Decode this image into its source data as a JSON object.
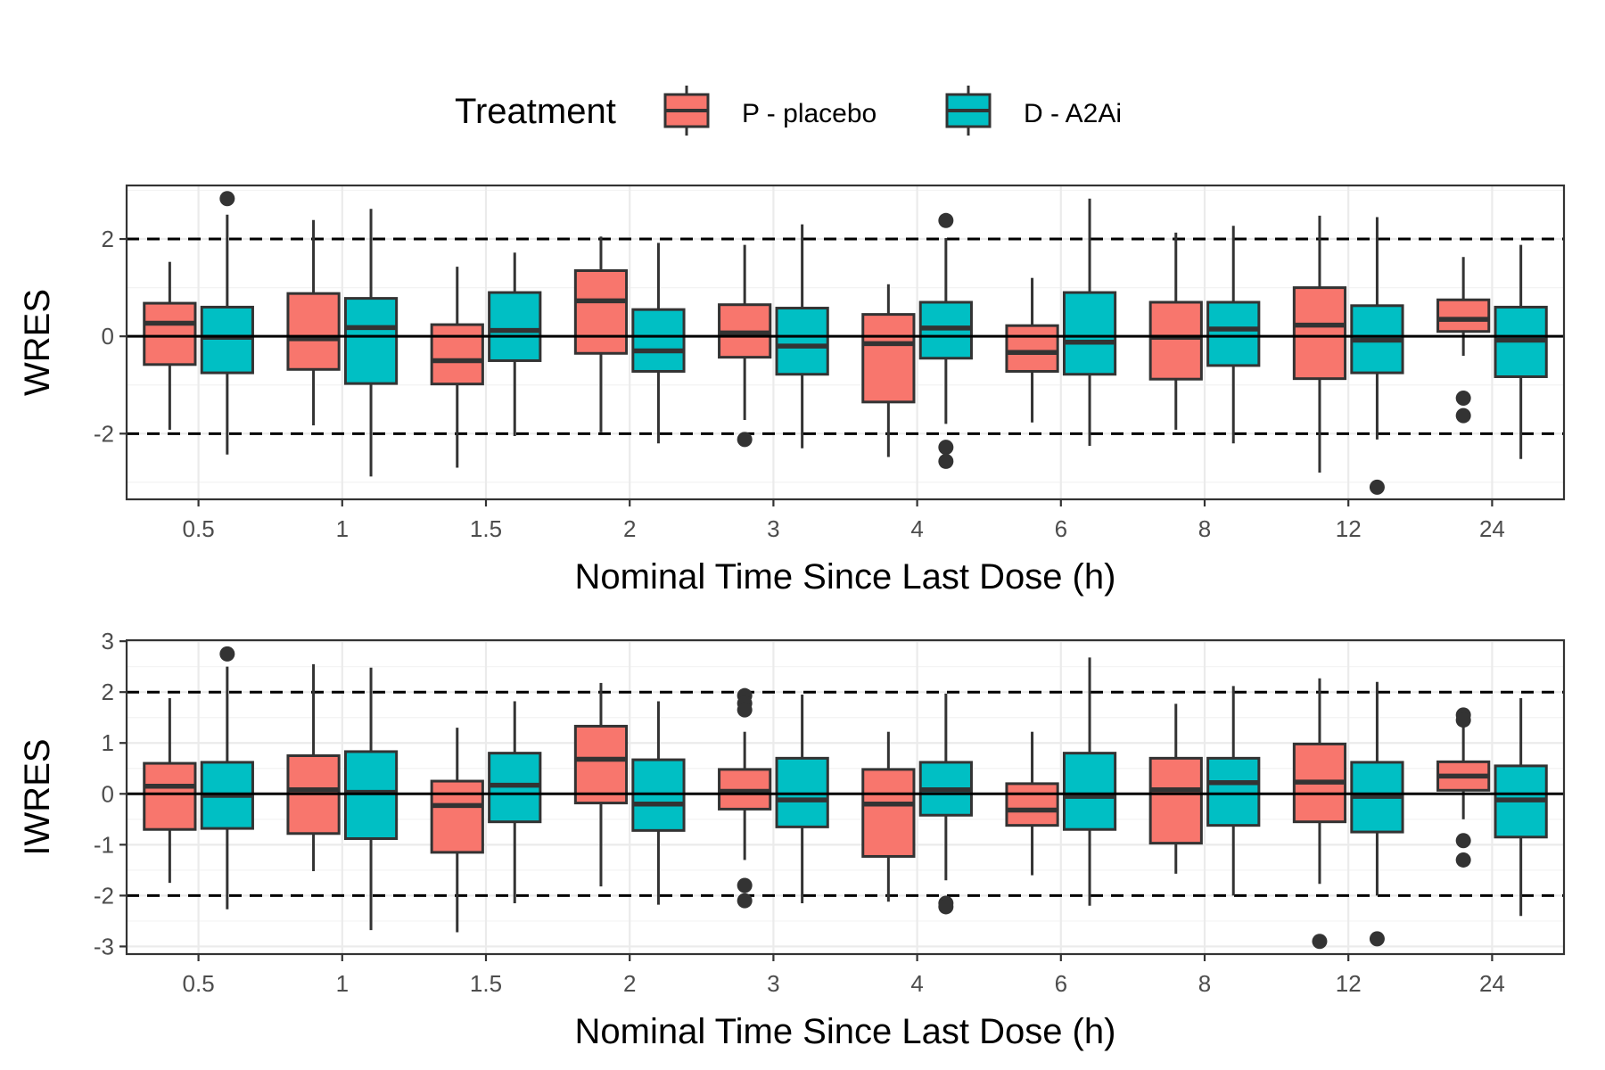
{
  "legend": {
    "title": "Treatment",
    "items": [
      {
        "label": "P - placebo",
        "color": "#F8766D"
      },
      {
        "label": "D - A2Ai",
        "color": "#00BFC4"
      }
    ]
  },
  "chart_data": [
    {
      "type": "box",
      "title": "",
      "xlabel": "Nominal Time Since Last Dose (h)",
      "ylabel": "WRES",
      "categories": [
        "0.5",
        "1",
        "1.5",
        "2",
        "3",
        "4",
        "6",
        "8",
        "12",
        "24"
      ],
      "ylim": [
        -3.35,
        3.1
      ],
      "yticks": [
        -2,
        0,
        2
      ],
      "ytick_labels": [
        "-2",
        "0",
        "2"
      ],
      "reference_lines": {
        "solid": [
          0
        ],
        "dashed": [
          -2,
          2
        ]
      },
      "grid": true,
      "series": [
        {
          "name": "P - placebo",
          "color": "#F8766D",
          "boxes": [
            {
              "whisker_low": -1.92,
              "q1": -0.58,
              "median": 0.27,
              "q3": 0.68,
              "whisker_high": 1.53,
              "outliers": []
            },
            {
              "whisker_low": -1.83,
              "q1": -0.68,
              "median": -0.05,
              "q3": 0.88,
              "whisker_high": 2.39,
              "outliers": []
            },
            {
              "whisker_low": -2.7,
              "q1": -0.98,
              "median": -0.5,
              "q3": 0.24,
              "whisker_high": 1.43,
              "outliers": []
            },
            {
              "whisker_low": -1.97,
              "q1": -0.35,
              "median": 0.73,
              "q3": 1.35,
              "whisker_high": 2.05,
              "outliers": []
            },
            {
              "whisker_low": -1.72,
              "q1": -0.43,
              "median": 0.07,
              "q3": 0.65,
              "whisker_high": 1.88,
              "outliers": [
                -2.12
              ]
            },
            {
              "whisker_low": -2.48,
              "q1": -1.35,
              "median": -0.15,
              "q3": 0.45,
              "whisker_high": 1.07,
              "outliers": []
            },
            {
              "whisker_low": -1.77,
              "q1": -0.72,
              "median": -0.33,
              "q3": 0.22,
              "whisker_high": 1.2,
              "outliers": []
            },
            {
              "whisker_low": -1.92,
              "q1": -0.88,
              "median": -0.02,
              "q3": 0.7,
              "whisker_high": 2.13,
              "outliers": []
            },
            {
              "whisker_low": -2.8,
              "q1": -0.87,
              "median": 0.23,
              "q3": 1.0,
              "whisker_high": 2.48,
              "outliers": []
            },
            {
              "whisker_low": -0.4,
              "q1": 0.1,
              "median": 0.35,
              "q3": 0.75,
              "whisker_high": 1.63,
              "outliers": [
                -1.27,
                -1.63
              ]
            }
          ]
        },
        {
          "name": "D - A2Ai",
          "color": "#00BFC4",
          "boxes": [
            {
              "whisker_low": -2.43,
              "q1": -0.75,
              "median": -0.02,
              "q3": 0.6,
              "whisker_high": 2.5,
              "outliers": [
                2.83
              ]
            },
            {
              "whisker_low": -2.88,
              "q1": -0.97,
              "median": 0.18,
              "q3": 0.78,
              "whisker_high": 2.62,
              "outliers": []
            },
            {
              "whisker_low": -2.05,
              "q1": -0.5,
              "median": 0.12,
              "q3": 0.9,
              "whisker_high": 1.72,
              "outliers": []
            },
            {
              "whisker_low": -2.2,
              "q1": -0.72,
              "median": -0.3,
              "q3": 0.55,
              "whisker_high": 1.92,
              "outliers": []
            },
            {
              "whisker_low": -2.3,
              "q1": -0.78,
              "median": -0.2,
              "q3": 0.58,
              "whisker_high": 2.3,
              "outliers": []
            },
            {
              "whisker_low": -1.8,
              "q1": -0.45,
              "median": 0.17,
              "q3": 0.7,
              "whisker_high": 2.02,
              "outliers": [
                2.38,
                -2.28,
                -2.57
              ]
            },
            {
              "whisker_low": -2.25,
              "q1": -0.78,
              "median": -0.12,
              "q3": 0.9,
              "whisker_high": 2.83,
              "outliers": []
            },
            {
              "whisker_low": -2.2,
              "q1": -0.6,
              "median": 0.15,
              "q3": 0.7,
              "whisker_high": 2.27,
              "outliers": []
            },
            {
              "whisker_low": -2.12,
              "q1": -0.75,
              "median": -0.08,
              "q3": 0.63,
              "whisker_high": 2.45,
              "outliers": [
                -3.1
              ]
            },
            {
              "whisker_low": -2.52,
              "q1": -0.83,
              "median": -0.08,
              "q3": 0.6,
              "whisker_high": 1.88,
              "outliers": []
            }
          ]
        }
      ]
    },
    {
      "type": "box",
      "title": "",
      "xlabel": "Nominal Time Since Last Dose (h)",
      "ylabel": "IWRES",
      "categories": [
        "0.5",
        "1",
        "1.5",
        "2",
        "3",
        "4",
        "6",
        "8",
        "12",
        "24"
      ],
      "ylim": [
        -3.15,
        3.02
      ],
      "yticks": [
        -3,
        -2,
        -1,
        0,
        1,
        2,
        3
      ],
      "ytick_labels": [
        "-3",
        "-2",
        "-1",
        "0",
        "1",
        "2",
        "3"
      ],
      "reference_lines": {
        "solid": [
          0
        ],
        "dashed": [
          -2,
          2
        ]
      },
      "grid": true,
      "series": [
        {
          "name": "P - placebo",
          "color": "#F8766D",
          "boxes": [
            {
              "whisker_low": -1.75,
              "q1": -0.7,
              "median": 0.15,
              "q3": 0.6,
              "whisker_high": 1.88,
              "outliers": []
            },
            {
              "whisker_low": -1.52,
              "q1": -0.78,
              "median": 0.08,
              "q3": 0.75,
              "whisker_high": 2.55,
              "outliers": []
            },
            {
              "whisker_low": -2.72,
              "q1": -1.15,
              "median": -0.23,
              "q3": 0.25,
              "whisker_high": 1.3,
              "outliers": []
            },
            {
              "whisker_low": -1.82,
              "q1": -0.18,
              "median": 0.68,
              "q3": 1.33,
              "whisker_high": 2.18,
              "outliers": []
            },
            {
              "whisker_low": -1.3,
              "q1": -0.3,
              "median": 0.05,
              "q3": 0.48,
              "whisker_high": 1.22,
              "outliers": [
                1.93,
                1.78,
                1.65,
                -1.8,
                -2.1
              ]
            },
            {
              "whisker_low": -2.12,
              "q1": -1.23,
              "median": -0.2,
              "q3": 0.48,
              "whisker_high": 1.22,
              "outliers": []
            },
            {
              "whisker_low": -1.6,
              "q1": -0.62,
              "median": -0.32,
              "q3": 0.2,
              "whisker_high": 1.22,
              "outliers": []
            },
            {
              "whisker_low": -1.57,
              "q1": -0.97,
              "median": 0.08,
              "q3": 0.7,
              "whisker_high": 1.77,
              "outliers": []
            },
            {
              "whisker_low": -1.77,
              "q1": -0.55,
              "median": 0.23,
              "q3": 0.98,
              "whisker_high": 2.27,
              "outliers": [
                -2.9
              ]
            },
            {
              "whisker_low": -0.5,
              "q1": 0.07,
              "median": 0.35,
              "q3": 0.63,
              "whisker_high": 1.38,
              "outliers": [
                1.55,
                1.45,
                -0.92,
                -1.3
              ]
            }
          ]
        },
        {
          "name": "D - A2Ai",
          "color": "#00BFC4",
          "boxes": [
            {
              "whisker_low": -2.27,
              "q1": -0.68,
              "median": -0.03,
              "q3": 0.62,
              "whisker_high": 2.5,
              "outliers": [
                2.75
              ]
            },
            {
              "whisker_low": -2.68,
              "q1": -0.88,
              "median": 0.03,
              "q3": 0.83,
              "whisker_high": 2.48,
              "outliers": []
            },
            {
              "whisker_low": -2.15,
              "q1": -0.55,
              "median": 0.17,
              "q3": 0.8,
              "whisker_high": 1.82,
              "outliers": []
            },
            {
              "whisker_low": -2.18,
              "q1": -0.72,
              "median": -0.2,
              "q3": 0.67,
              "whisker_high": 1.82,
              "outliers": []
            },
            {
              "whisker_low": -2.15,
              "q1": -0.65,
              "median": -0.12,
              "q3": 0.7,
              "whisker_high": 1.95,
              "outliers": []
            },
            {
              "whisker_low": -1.7,
              "q1": -0.42,
              "median": 0.08,
              "q3": 0.62,
              "whisker_high": 1.97,
              "outliers": [
                -2.15,
                -2.22
              ]
            },
            {
              "whisker_low": -2.2,
              "q1": -0.7,
              "median": -0.05,
              "q3": 0.8,
              "whisker_high": 2.68,
              "outliers": []
            },
            {
              "whisker_low": -2.0,
              "q1": -0.62,
              "median": 0.22,
              "q3": 0.7,
              "whisker_high": 2.12,
              "outliers": []
            },
            {
              "whisker_low": -2.0,
              "q1": -0.75,
              "median": -0.05,
              "q3": 0.62,
              "whisker_high": 2.2,
              "outliers": [
                -2.85
              ]
            },
            {
              "whisker_low": -2.4,
              "q1": -0.85,
              "median": -0.12,
              "q3": 0.55,
              "whisker_high": 1.88,
              "outliers": []
            }
          ]
        }
      ]
    }
  ]
}
